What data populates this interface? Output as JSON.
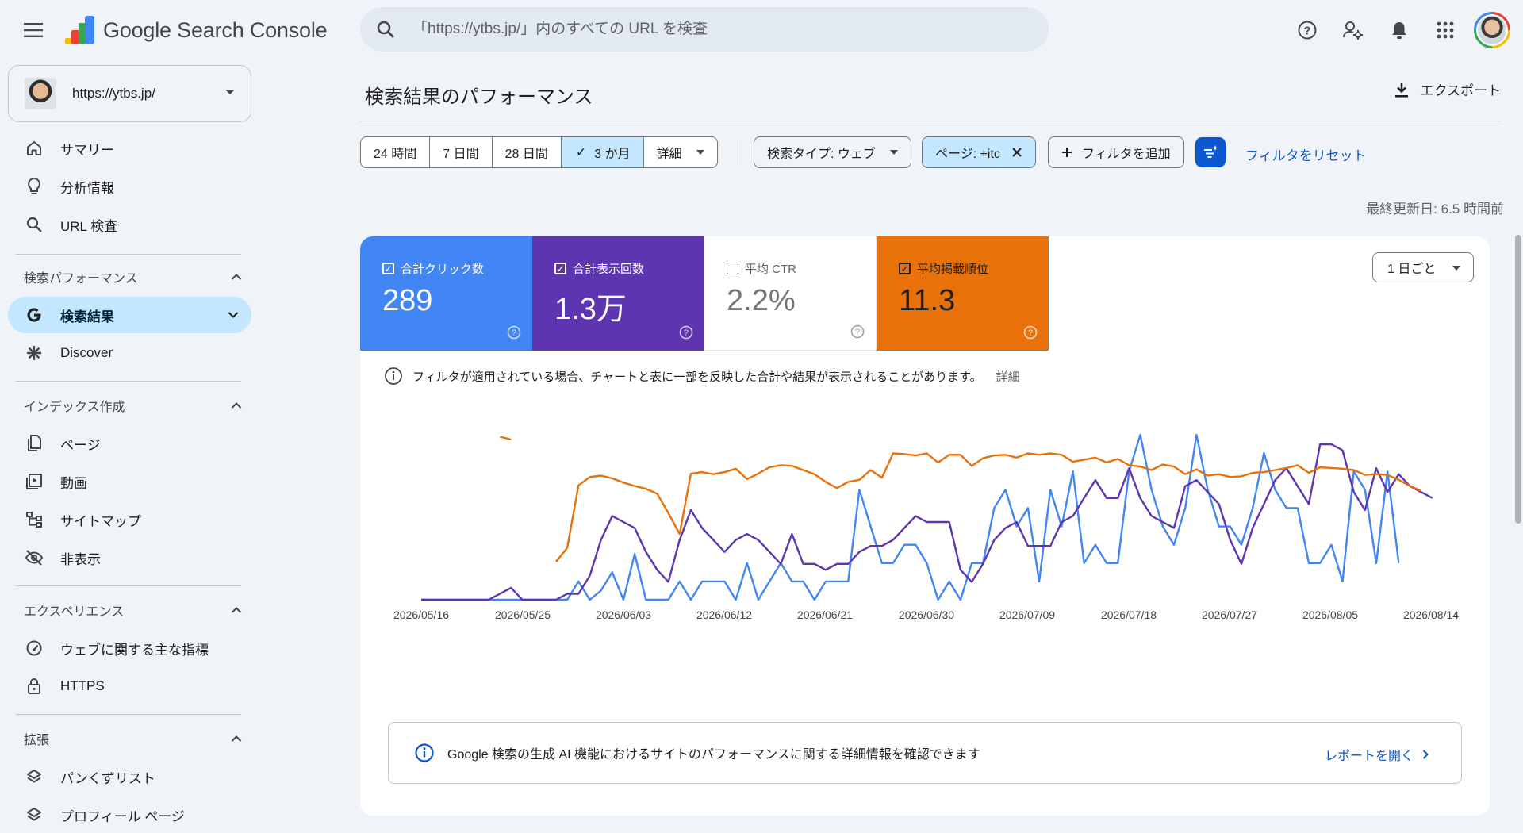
{
  "app": {
    "name": "Google Search Console"
  },
  "search": {
    "placeholder": "「https://ytbs.jp/」内のすべての URL を検査"
  },
  "topbar": {
    "icons": [
      "help-icon",
      "manage-users-icon",
      "bell-icon",
      "apps-grid-icon",
      "account-avatar"
    ]
  },
  "property": {
    "url": "https://ytbs.jp/"
  },
  "sidebar": {
    "items_top": [
      {
        "label": "サマリー",
        "icon": "home-icon"
      },
      {
        "label": "分析情報",
        "icon": "lightbulb-icon"
      },
      {
        "label": "URL 検査",
        "icon": "search-icon"
      }
    ],
    "sections": [
      {
        "title": "検索パフォーマンス",
        "items": [
          {
            "label": "検索結果",
            "icon": "google-g-icon",
            "active": true
          },
          {
            "label": "Discover",
            "icon": "asterisk-icon"
          }
        ]
      },
      {
        "title": "インデックス作成",
        "items": [
          {
            "label": "ページ",
            "icon": "pages-icon"
          },
          {
            "label": "動画",
            "icon": "video-icon"
          },
          {
            "label": "サイトマップ",
            "icon": "sitemap-icon"
          },
          {
            "label": "非表示",
            "icon": "eye-off-icon"
          }
        ]
      },
      {
        "title": "エクスペリエンス",
        "items": [
          {
            "label": "ウェブに関する主な指標",
            "icon": "gauge-icon"
          },
          {
            "label": "HTTPS",
            "icon": "lock-icon"
          }
        ]
      },
      {
        "title": "拡張",
        "items": [
          {
            "label": "パンくずリスト",
            "icon": "layers-icon"
          },
          {
            "label": "プロフィール ページ",
            "icon": "layers-icon"
          }
        ]
      }
    ]
  },
  "main": {
    "title": "検索結果のパフォーマンス",
    "export_label": "エクスポート",
    "date_ranges": [
      "24 時間",
      "7 日間",
      "28 日間",
      "3 か月",
      "詳細"
    ],
    "date_selected": "3 か月",
    "check_mark": "✓",
    "search_type": "検索タイプ: ウェブ",
    "page_filter": "ページ: +itc",
    "add_filter": "フィルタを追加",
    "reset_filters": "フィルタをリセット",
    "last_updated": "最終更新日: 6.5 時間前",
    "granularity": "1 日ごと",
    "notice": "フィルタが適用されている場合、チャートと表に一部を反映した合計や結果が表示されることがあります。",
    "notice_link": "詳細",
    "banner_text": "Google 検索の生成 AI 機能におけるサイトのパフォーマンスに関する詳細情報を確認できます",
    "banner_link": "レポートを開く"
  },
  "metrics": [
    {
      "label": "合計クリック数",
      "value": "289",
      "checked": true,
      "color": "#4285f4"
    },
    {
      "label": "合計表示回数",
      "value": "1.3万",
      "checked": true,
      "color": "#5e35b1"
    },
    {
      "label": "平均 CTR",
      "value": "2.2%",
      "checked": false,
      "color": "#ffffff"
    },
    {
      "label": "平均掲載順位",
      "value": "11.3",
      "checked": true,
      "color": "#e8710a"
    }
  ],
  "chart_data": {
    "type": "line",
    "x_ticks": [
      "2026/05/16",
      "2026/05/25",
      "2026/06/03",
      "2026/06/12",
      "2026/06/21",
      "2026/06/30",
      "2026/07/09",
      "2026/07/18",
      "2026/07/27",
      "2026/08/05",
      "2026/08/14"
    ],
    "y_axis": "hidden",
    "series": [
      {
        "name": "合計クリック数",
        "color": "#4285f4",
        "values": [
          0,
          0,
          0,
          0,
          0,
          0,
          0,
          0,
          0,
          0,
          0,
          0,
          0,
          0,
          2,
          0,
          1,
          3,
          0,
          5,
          0,
          0,
          0,
          2,
          0,
          2,
          2,
          2,
          0,
          4,
          0,
          2,
          4,
          2,
          2,
          0,
          2,
          2,
          2,
          12,
          8,
          4,
          4,
          6,
          6,
          4,
          0,
          2,
          0,
          4,
          4,
          10,
          12,
          8,
          10,
          2,
          12,
          8,
          14,
          4,
          6,
          4,
          4,
          14,
          18,
          12,
          8,
          6,
          10,
          18,
          12,
          8,
          8,
          6,
          10,
          16,
          12,
          10,
          10,
          4,
          4,
          6,
          2,
          14,
          12,
          4,
          14,
          4
        ]
      },
      {
        "name": "合計表示回数",
        "color": "#5e35b1",
        "values": [
          0,
          0,
          0,
          0,
          0,
          0,
          0,
          1,
          2,
          0,
          0,
          0,
          0,
          1,
          1,
          4,
          10,
          14,
          13,
          12,
          8,
          5,
          3,
          10,
          15,
          12,
          10,
          8,
          10,
          11,
          10,
          8,
          6,
          11,
          6,
          6,
          5,
          6,
          6,
          8,
          9,
          9,
          10,
          12,
          14,
          13,
          13,
          13,
          5,
          3,
          6,
          10,
          12,
          13,
          9,
          9,
          9,
          13,
          14,
          17,
          20,
          17,
          17,
          22,
          17,
          14,
          13,
          12,
          19,
          20,
          18,
          16,
          10,
          6,
          12,
          16,
          20,
          22,
          19,
          16,
          26,
          26,
          25,
          18,
          15,
          22,
          18,
          21,
          19,
          18,
          17
        ]
      },
      {
        "name": "平均掲載順位",
        "color": "#e8710a",
        "segments": [
          {
            "start": 7,
            "values": [
              16,
              16.4
            ]
          },
          {
            "start": 12,
            "values": [
              34,
              32,
              23,
              21.8,
              21.6,
              22,
              22.6,
              23.1,
              23.5,
              24.2,
              27,
              30,
              21.3,
              21.1,
              21.4,
              21.1,
              20.6,
              22.1,
              21.3,
              20.4,
              20.1,
              20.2,
              20.8,
              21.4,
              22.5,
              23.4,
              22.5,
              22.2,
              20.8,
              21.9,
              18.4,
              18.5,
              18.7,
              18.4,
              19.7,
              18.6,
              18.6,
              20.2,
              19.1,
              18.7,
              18.6,
              19.0,
              18.4,
              18.6,
              18.4,
              18.6,
              19.6,
              19.3,
              19.0,
              19.7,
              19.2,
              20.1,
              20.3,
              20.8,
              20.0,
              20.3,
              21.4,
              20.7,
              21.6,
              21.4,
              21.8,
              21.7,
              21.2,
              21.1,
              20.8,
              20.5,
              20.1,
              21.2,
              20.4,
              20.5,
              20.6,
              20.8,
              21.5,
              21.4,
              21.5,
              22.2,
              23.1,
              23.8
            ]
          }
        ]
      }
    ]
  }
}
